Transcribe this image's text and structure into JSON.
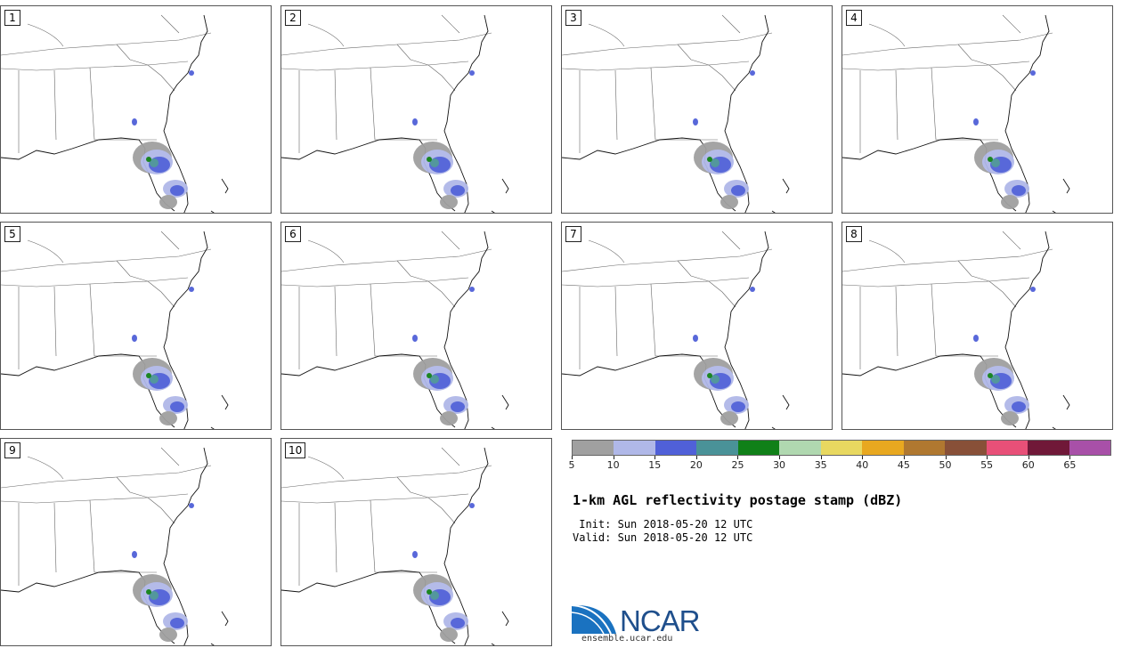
{
  "panels": [
    {
      "label": "1"
    },
    {
      "label": "2"
    },
    {
      "label": "3"
    },
    {
      "label": "4"
    },
    {
      "label": "5"
    },
    {
      "label": "6"
    },
    {
      "label": "7"
    },
    {
      "label": "8"
    },
    {
      "label": "9"
    },
    {
      "label": "10"
    }
  ],
  "colorbar": {
    "colors": [
      "#a0a0a0",
      "#b0b8e8",
      "#5060d8",
      "#4a9298",
      "#108018",
      "#b0d8b0",
      "#e8d860",
      "#e8a820",
      "#b07830",
      "#885038",
      "#e85078",
      "#701838",
      "#a850a8"
    ],
    "ticks": [
      "5",
      "10",
      "15",
      "20",
      "25",
      "30",
      "35",
      "40",
      "45",
      "50",
      "55",
      "60",
      "65"
    ]
  },
  "title": "1-km AGL reflectivity postage stamp (dBZ)",
  "init": " Init: Sun 2018-05-20 12 UTC",
  "valid": "Valid: Sun 2018-05-20 12 UTC",
  "logo": {
    "name": "NCAR",
    "url": "ensemble.ucar.edu"
  }
}
